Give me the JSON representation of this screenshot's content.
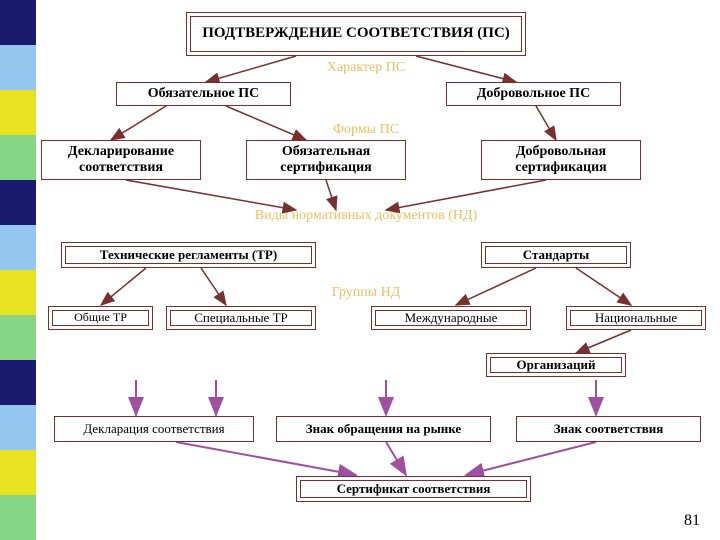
{
  "page_number": "81",
  "sidebar_colors": [
    "#1a1a6e",
    "#93c7f0",
    "#e8e220",
    "#86d686",
    "#1a1a6e",
    "#93c7f0",
    "#e8e220",
    "#86d686",
    "#1a1a6e",
    "#93c7f0",
    "#e8e220",
    "#86d686"
  ],
  "colors": {
    "box_border": "#7a2f2f",
    "label_text": "#e8c060",
    "arrow": "#7a2f2f",
    "arrow_down": "#a050a0",
    "text": "#000000"
  },
  "labels": {
    "character": "Характер ПС",
    "forms": "Формы ПС",
    "docs": "Виды нормативных документов (НД)",
    "groups": "Группы НД"
  },
  "nodes": {
    "root": "ПОДТВЕРЖДЕНИЕ СООТВЕТСТВИЯ (ПС)",
    "mandatory_ps": "Обязательное ПС",
    "voluntary_ps": "Добровольное ПС",
    "declaration": "Декларирование соответствия",
    "mandatory_cert": "Обязательная сертификация",
    "voluntary_cert": "Добровольная сертификация",
    "tech_regs": "Технические регламенты (ТР)",
    "standards": "Стандарты",
    "general_tr": "Общие ТР",
    "special_tr": "Специальные ТР",
    "international": "Международные",
    "national": "Национальные",
    "organizations": "Организаций",
    "decl_doc": "Декларация соответствия",
    "market_sign": "Знак обращения на рынке",
    "conformity_sign": "Знак соответствия",
    "conformity_cert": "Сертификат соответствия"
  },
  "font_sizes": {
    "root": 15,
    "bold_box": 14,
    "normal_box": 13,
    "small_box": 12
  }
}
